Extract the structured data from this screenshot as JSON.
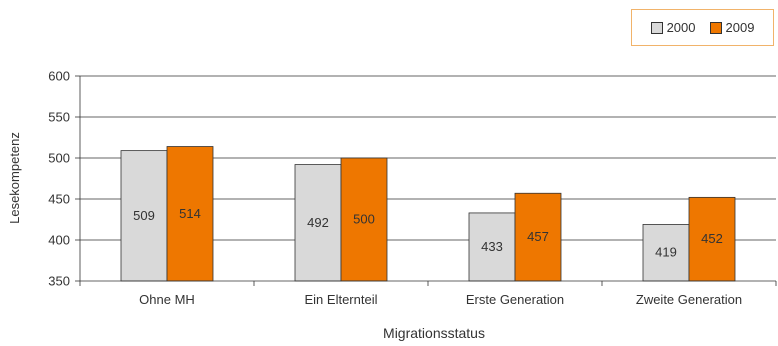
{
  "chart_data": {
    "type": "bar",
    "title": "",
    "xlabel": "Migrationsstatus",
    "ylabel": "Lesekompetenz",
    "ylim": [
      350,
      600
    ],
    "yticks": [
      "350",
      "400",
      "450",
      "500",
      "550",
      "600"
    ],
    "categories": [
      "Ohne MH",
      "Ein Elternteil",
      "Erste Generation",
      "Zweite Generation"
    ],
    "series": [
      {
        "name": "2000",
        "values": [
          509,
          492,
          433,
          419
        ],
        "color": "#d9d9d9"
      },
      {
        "name": "2009",
        "values": [
          514,
          500,
          457,
          452
        ],
        "color": "#ee7700"
      }
    ],
    "legend_position": "top-right",
    "grid": true
  }
}
